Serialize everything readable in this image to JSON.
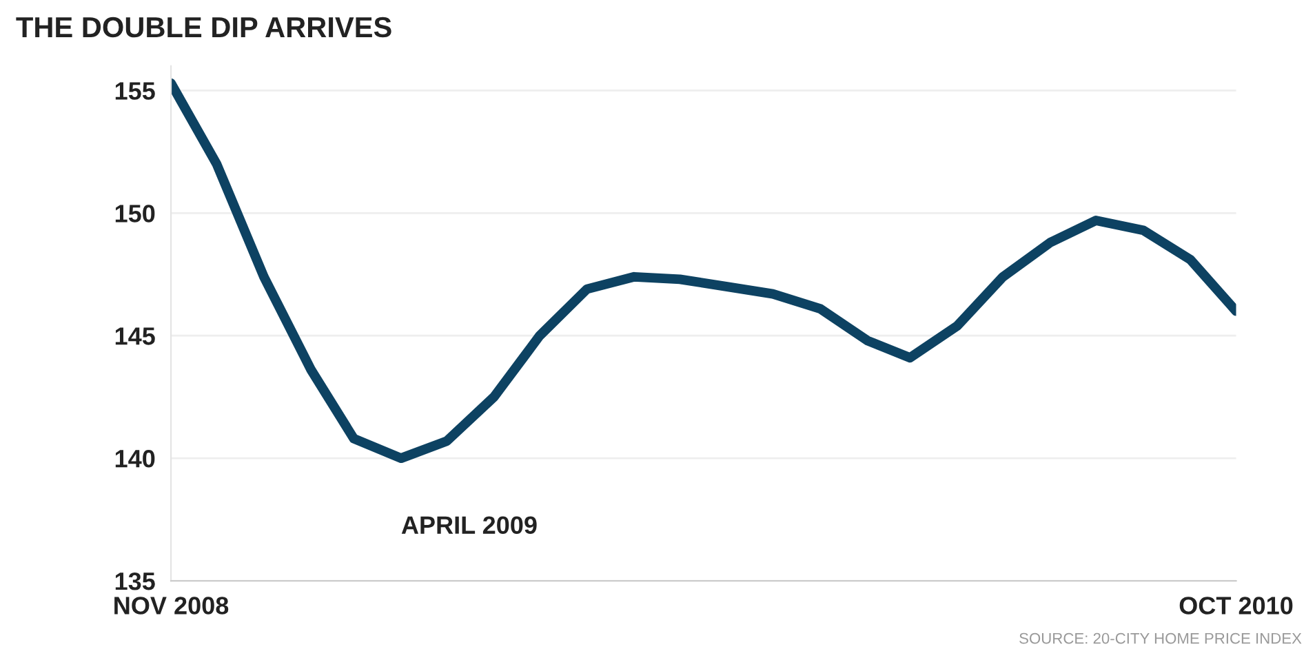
{
  "chart_data": {
    "type": "line",
    "title": "THE DOUBLE DIP ARRIVES",
    "x": [
      "2008-11",
      "2008-12",
      "2009-01",
      "2009-02",
      "2009-03",
      "2009-04",
      "2009-05",
      "2009-06",
      "2009-07",
      "2009-08",
      "2009-09",
      "2009-10",
      "2009-11",
      "2009-12",
      "2010-01",
      "2010-02",
      "2010-03",
      "2010-04",
      "2010-05",
      "2010-06",
      "2010-07",
      "2010-08",
      "2010-09",
      "2010-10"
    ],
    "series": [
      {
        "color": "#0d4262",
        "values": [
          155.3,
          152.0,
          147.4,
          143.6,
          140.8,
          140.0,
          140.7,
          142.5,
          145.0,
          146.9,
          147.4,
          147.3,
          147.0,
          146.7,
          146.1,
          144.8,
          144.1,
          145.4,
          147.4,
          148.8,
          149.7,
          149.3,
          148.1,
          146.0
        ]
      }
    ],
    "xlim": [
      "2008-11",
      "2010-10"
    ],
    "xticks": [
      {
        "value": "2008-11",
        "label": "NOV 2008"
      },
      {
        "value": "2010-10",
        "label": "OCT 2010"
      }
    ],
    "ylim": [
      135,
      156
    ],
    "yticks": [
      135,
      140,
      145,
      150,
      155
    ],
    "grid": "y",
    "marker": "none",
    "line_style": "solid",
    "annotations": [
      {
        "text": "APRIL 2009",
        "x": "2009-04",
        "y": 140.0
      },
      "SOURCE: 20-CITY HOME PRICE INDEX"
    ]
  }
}
